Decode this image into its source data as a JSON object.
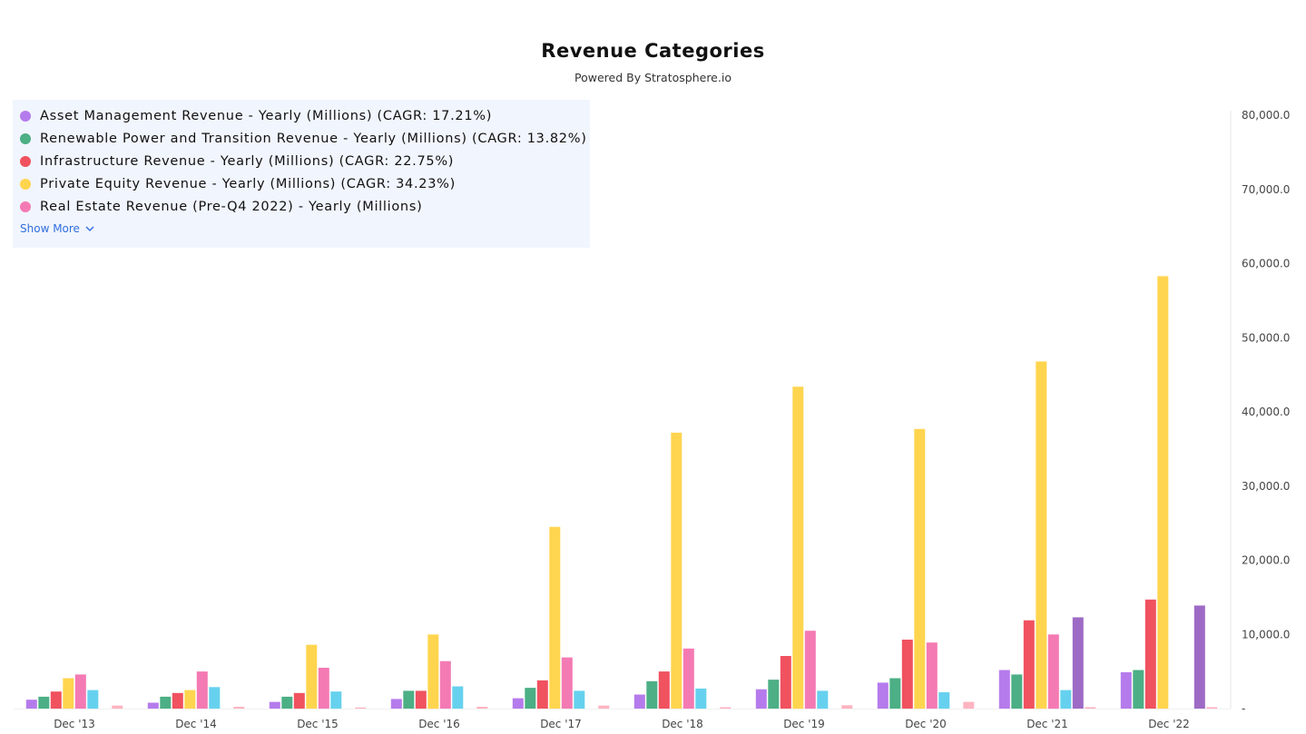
{
  "title": "Revenue Categories",
  "subtitle": "Powered By Stratosphere.io",
  "legend": {
    "items": [
      {
        "label": "Asset Management Revenue - Yearly (Millions) (CAGR: 17.21%)",
        "color": "#b57bec"
      },
      {
        "label": "Renewable Power and Transition Revenue - Yearly (Millions) (CAGR: 13.82%)",
        "color": "#4caf85"
      },
      {
        "label": "Infrastructure Revenue - Yearly (Millions) (CAGR: 22.75%)",
        "color": "#f0525f"
      },
      {
        "label": "Private Equity Revenue - Yearly (Millions) (CAGR: 34.23%)",
        "color": "#ffd54f"
      },
      {
        "label": "Real Estate Revenue (Pre-Q4 2022) - Yearly (Millions)",
        "color": "#f47ab3"
      }
    ],
    "show_more_label": "Show More"
  },
  "chart_data": {
    "type": "bar",
    "categories": [
      "Dec '13",
      "Dec '14",
      "Dec '15",
      "Dec '16",
      "Dec '17",
      "Dec '18",
      "Dec '19",
      "Dec '20",
      "Dec '21",
      "Dec '22"
    ],
    "ylim": [
      0,
      80000
    ],
    "y_ticks": [
      "-",
      "10,000.0",
      "20,000.0",
      "30,000.0",
      "40,000.0",
      "50,000.0",
      "60,000.0",
      "70,000.0",
      "80,000.0"
    ],
    "y_axis_position": "right",
    "grid": false,
    "legend_position": "top-left",
    "series": [
      {
        "name": "Asset Management Revenue - Yearly (Millions) (CAGR: 17.21%)",
        "color": "#b57bec",
        "values": [
          1200,
          800,
          900,
          1300,
          1400,
          1900,
          2600,
          3500,
          5200,
          4900
        ]
      },
      {
        "name": "Renewable Power and Transition Revenue - Yearly (Millions) (CAGR: 13.82%)",
        "color": "#4caf85",
        "values": [
          1600,
          1600,
          1600,
          2400,
          2800,
          3700,
          3900,
          4100,
          4600,
          5200
        ]
      },
      {
        "name": "Infrastructure Revenue - Yearly (Millions) (CAGR: 22.75%)",
        "color": "#f0525f",
        "values": [
          2300,
          2100,
          2100,
          2400,
          3800,
          5000,
          7100,
          9300,
          11900,
          14700
        ]
      },
      {
        "name": "Private Equity Revenue - Yearly (Millions) (CAGR: 34.23%)",
        "color": "#ffd54f",
        "values": [
          4100,
          2500,
          8600,
          10000,
          24500,
          37200,
          43400,
          37700,
          46800,
          58300
        ]
      },
      {
        "name": "Real Estate Revenue (Pre-Q4 2022) - Yearly (Millions)",
        "color": "#f47ab3",
        "values": [
          4600,
          5000,
          5500,
          6400,
          6900,
          8100,
          10500,
          8900,
          10000,
          0
        ]
      },
      {
        "color": "#66d1ee",
        "values": [
          2500,
          2900,
          2300,
          3000,
          2400,
          2700,
          2400,
          2200,
          2500,
          0
        ]
      },
      {
        "color": "#9d6ac6",
        "values": [
          0,
          0,
          0,
          0,
          0,
          0,
          0,
          0,
          12300,
          13900
        ]
      },
      {
        "color": "#ffb3c1",
        "values": [
          400,
          250,
          150,
          250,
          400,
          200,
          450,
          900,
          200,
          200
        ]
      }
    ]
  }
}
